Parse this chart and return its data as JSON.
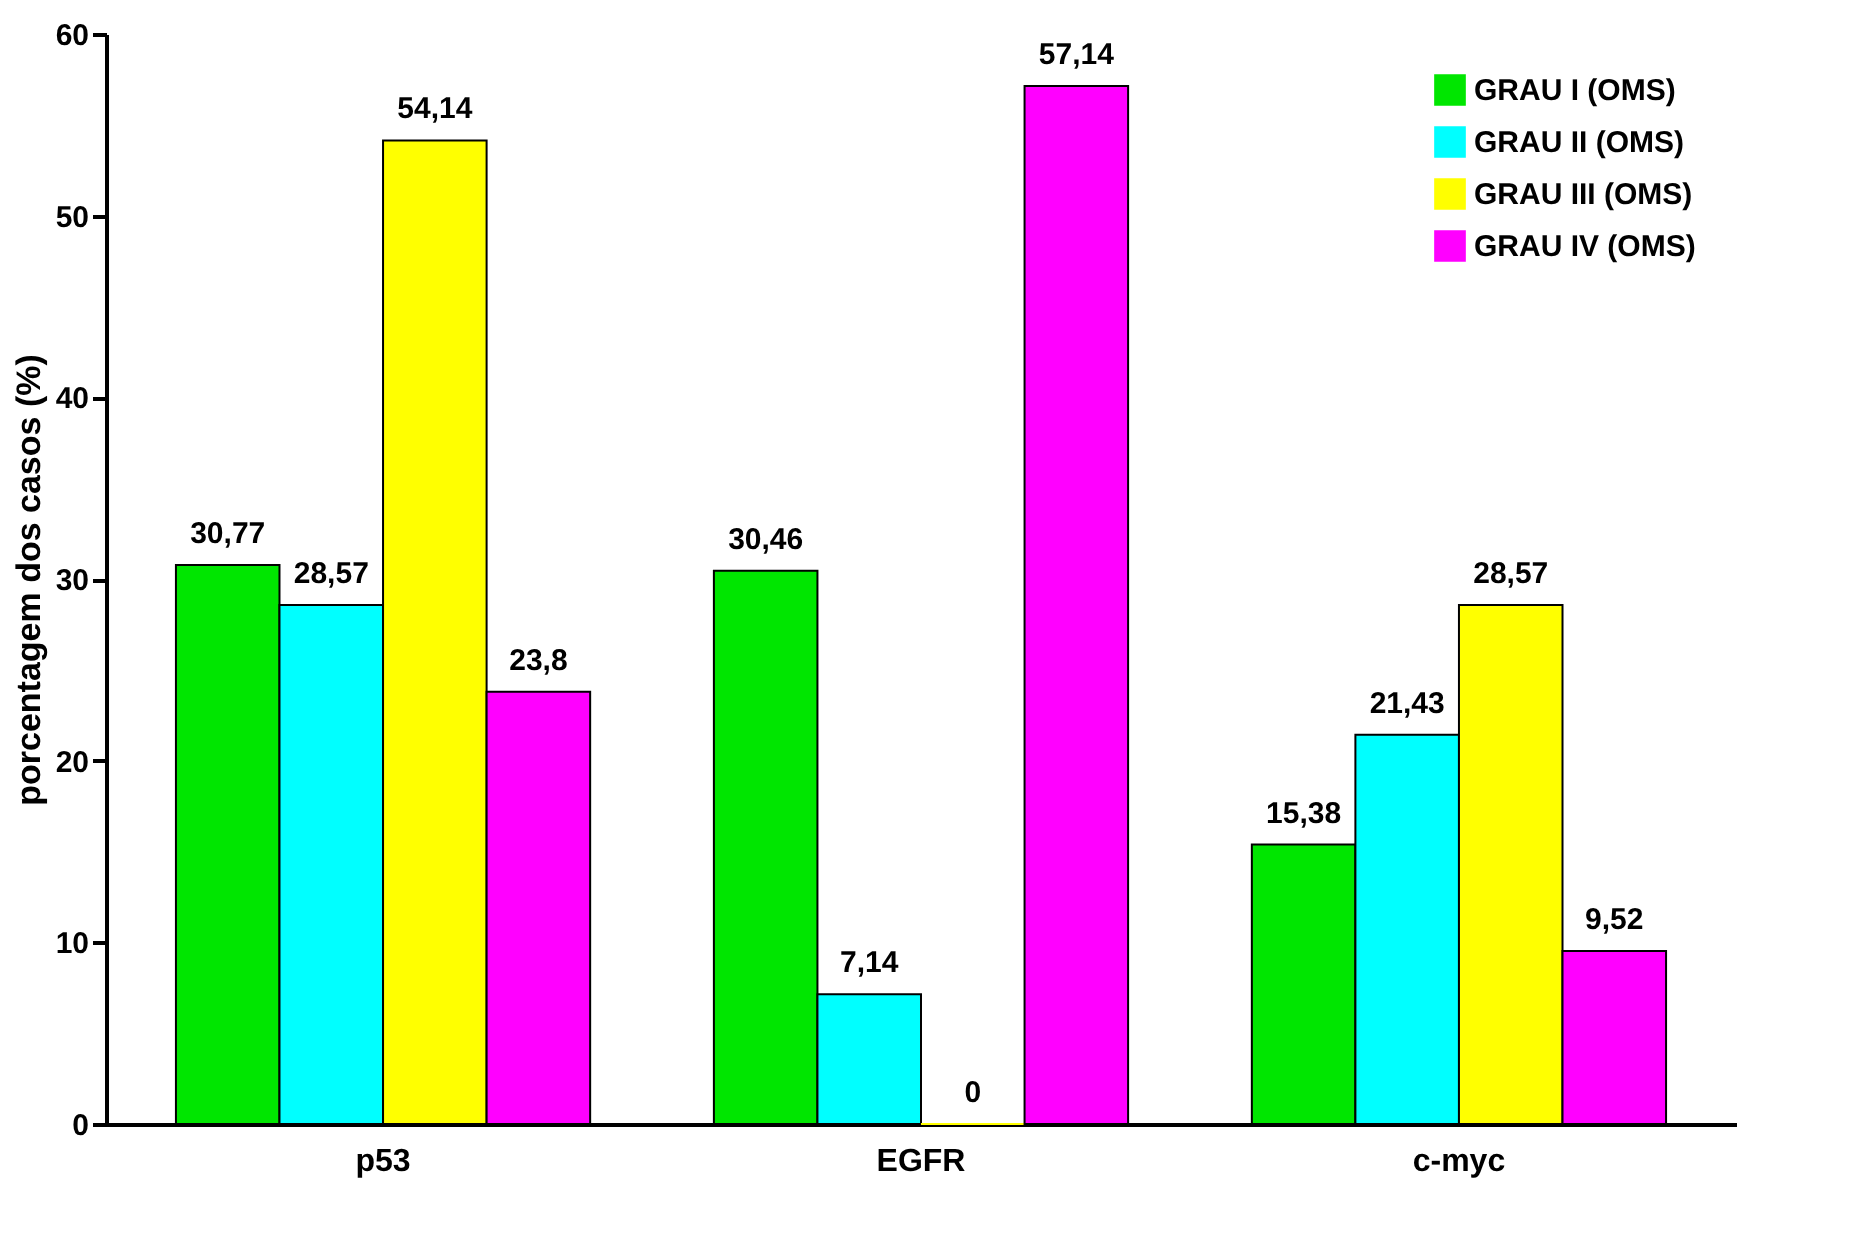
{
  "chart_data": {
    "type": "bar",
    "ylabel": "porcentagem dos casos (%)",
    "categories": [
      "p53",
      "EGFR",
      "c-myc"
    ],
    "series": [
      {
        "name": "GRAU I (OMS)",
        "color": "#00e600",
        "values": [
          30.77,
          30.46,
          15.38
        ],
        "value_labels": [
          "30,77",
          "30,46",
          "15,38"
        ]
      },
      {
        "name": "GRAU II (OMS)",
        "color": "#00ffff",
        "values": [
          28.57,
          7.14,
          21.43
        ],
        "value_labels": [
          "28,57",
          "7,14",
          "21,43"
        ]
      },
      {
        "name": "GRAU III (OMS)",
        "color": "#ffff00",
        "values": [
          54.14,
          0,
          28.57
        ],
        "value_labels": [
          "54,14",
          "0",
          "28,57"
        ]
      },
      {
        "name": "GRAU IV (OMS)",
        "color": "#ff00ff",
        "values": [
          23.8,
          57.14,
          9.52
        ],
        "value_labels": [
          "23,8",
          "57,14",
          "9,52"
        ]
      }
    ],
    "ylim": [
      0,
      60
    ],
    "yticks": [
      0,
      10,
      20,
      30,
      40,
      50,
      60
    ],
    "grid": false,
    "legend": "top right"
  }
}
